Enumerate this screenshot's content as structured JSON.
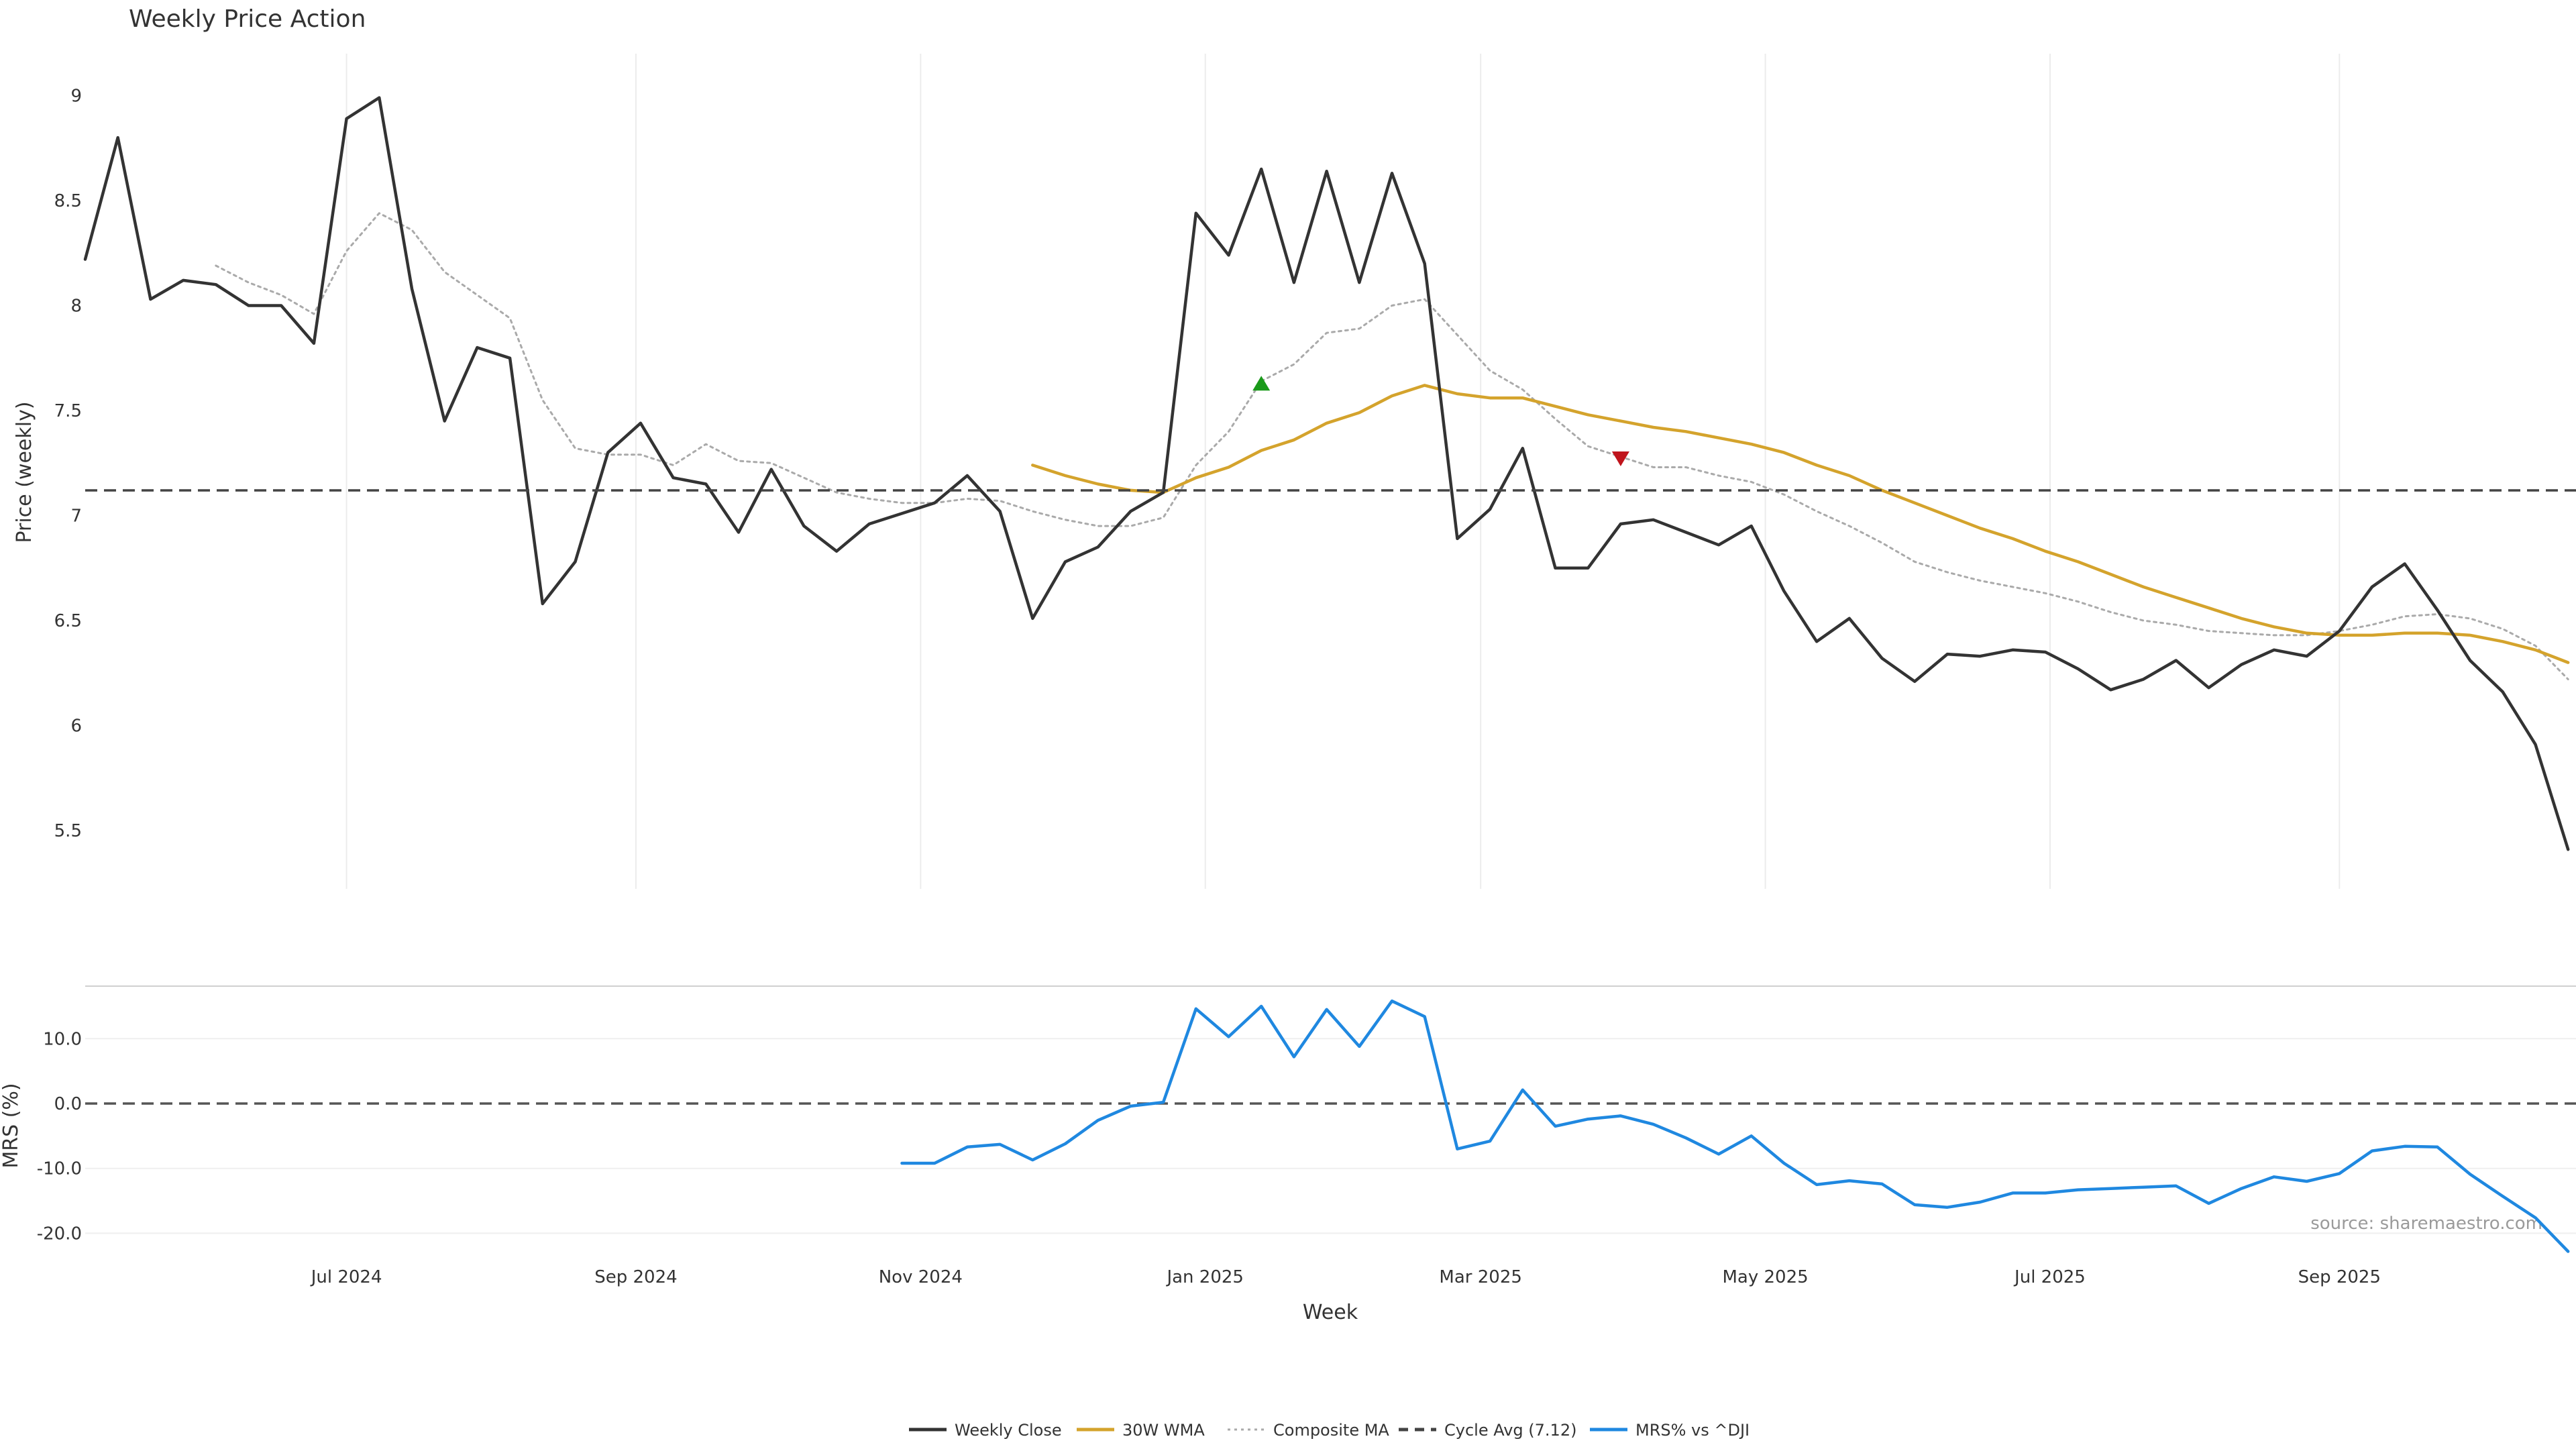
{
  "chart_data": [
    {
      "type": "line",
      "title": "Weekly Price Action",
      "xlabel": "",
      "ylabel": "Price (weekly)",
      "ylim": [
        5.2,
        9.2
      ],
      "yticks": [
        "5.5",
        "6",
        "6.5",
        "7",
        "7.5",
        "8",
        "8.5",
        "9"
      ],
      "grid": true,
      "week_start": "2024-05-06",
      "series": [
        {
          "name": "Weekly Close",
          "color": "#333333",
          "style": "solid",
          "values": [
            8.22,
            8.8,
            8.03,
            8.12,
            8.1,
            8.0,
            8.0,
            7.82,
            8.89,
            8.99,
            8.08,
            7.45,
            7.8,
            7.75,
            6.58,
            6.78,
            7.3,
            7.44,
            7.18,
            7.15,
            6.92,
            7.22,
            6.95,
            6.83,
            6.96,
            7.01,
            7.06,
            7.19,
            7.02,
            6.51,
            6.78,
            6.85,
            7.02,
            7.11,
            8.44,
            8.24,
            8.65,
            8.11,
            8.64,
            8.11,
            8.63,
            8.2,
            6.89,
            7.03,
            7.32,
            6.75,
            6.75,
            6.96,
            6.98,
            6.92,
            6.86,
            6.95,
            6.64,
            6.4,
            6.51,
            6.32,
            6.21,
            6.34,
            6.33,
            6.36,
            6.35,
            6.27,
            6.17,
            6.22,
            6.31,
            6.18,
            6.29,
            6.36,
            6.33,
            6.45,
            6.66,
            6.77,
            6.55,
            6.31,
            6.16,
            5.91,
            5.41
          ]
        },
        {
          "name": "30W WMA",
          "color": "#d4a32c",
          "style": "solid",
          "start_index": 29,
          "values": [
            7.24,
            7.19,
            7.15,
            7.12,
            7.11,
            7.18,
            7.23,
            7.31,
            7.36,
            7.44,
            7.49,
            7.57,
            7.62,
            7.58,
            7.56,
            7.56,
            7.52,
            7.48,
            7.45,
            7.42,
            7.4,
            7.37,
            7.34,
            7.3,
            7.24,
            7.19,
            7.12,
            7.06,
            7.0,
            6.94,
            6.89,
            6.83,
            6.78,
            6.72,
            6.66,
            6.61,
            6.56,
            6.51,
            6.47,
            6.44,
            6.43,
            6.43,
            6.44,
            6.44,
            6.43,
            6.4,
            6.36,
            6.3
          ]
        },
        {
          "name": "Composite MA",
          "color": "#aaaaaa",
          "style": "dotted",
          "start_index": 4,
          "values": [
            8.19,
            8.11,
            8.05,
            7.96,
            8.26,
            8.44,
            8.36,
            8.16,
            8.05,
            7.94,
            7.55,
            7.32,
            7.29,
            7.29,
            7.24,
            7.34,
            7.26,
            7.25,
            7.18,
            7.11,
            7.08,
            7.06,
            7.06,
            7.08,
            7.07,
            7.02,
            6.98,
            6.95,
            6.95,
            6.99,
            7.24,
            7.4,
            7.64,
            7.72,
            7.87,
            7.89,
            8.0,
            8.03,
            7.86,
            7.69,
            7.6,
            7.46,
            7.33,
            7.28,
            7.23,
            7.23,
            7.19,
            7.16,
            7.1,
            7.02,
            6.95,
            6.87,
            6.78,
            6.73,
            6.69,
            6.66,
            6.63,
            6.59,
            6.54,
            6.5,
            6.48,
            6.45,
            6.44,
            6.43,
            6.43,
            6.45,
            6.48,
            6.52,
            6.53,
            6.51,
            6.46,
            6.38,
            6.22
          ]
        },
        {
          "name": "Cycle Avg (7.12)",
          "color": "#444444",
          "style": "dashed",
          "constant": 7.12
        }
      ],
      "markers": [
        {
          "type": "buy",
          "shape": "triangle-up",
          "color": "#1a9a1a",
          "index": 36,
          "value": 7.63
        },
        {
          "type": "sell",
          "shape": "triangle-down",
          "color": "#c0141c",
          "index": 47,
          "value": 7.27
        }
      ]
    },
    {
      "type": "line",
      "title": "",
      "xlabel": "Week",
      "ylabel": "MRS (%)",
      "ylim": [
        -22,
        18
      ],
      "yticks": [
        "10.0",
        "0.0",
        "-10.0",
        "-20.0"
      ],
      "xticks": [
        "Jul 2024",
        "Sep 2024",
        "Nov 2024",
        "Jan 2025",
        "Mar 2025",
        "May 2025",
        "Jul 2025",
        "Sep 2025"
      ],
      "grid": true,
      "annotation": "source: sharemaestro.com",
      "series": [
        {
          "name": "MRS% vs ^DJI",
          "color": "#1f88e0",
          "style": "solid",
          "start_index": 25,
          "values": [
            -9.2,
            -9.2,
            -6.7,
            -6.3,
            -8.7,
            -6.2,
            -2.6,
            -0.4,
            0.2,
            14.6,
            10.3,
            15.0,
            7.2,
            14.5,
            8.8,
            15.8,
            13.4,
            -7.0,
            -5.8,
            2.1,
            -3.5,
            -2.4,
            -1.9,
            -3.2,
            -5.3,
            -7.8,
            -5.0,
            -9.2,
            -12.5,
            -11.9,
            -12.4,
            -15.6,
            -16.0,
            -15.2,
            -13.8,
            -13.8,
            -13.3,
            -13.1,
            -12.9,
            -12.7,
            -15.4,
            -13.1,
            -11.3,
            -12.0,
            -10.8,
            -7.3,
            -6.6,
            -6.7,
            -10.9,
            -14.3,
            -17.6,
            -22.8
          ]
        },
        {
          "name": "",
          "color": "#555555",
          "style": "dashed",
          "constant": 0
        }
      ]
    }
  ],
  "legend": {
    "position": "bottom-center",
    "items": [
      {
        "label": "Weekly Close",
        "color": "#333333",
        "style": "solid"
      },
      {
        "label": "30W WMA",
        "color": "#d4a32c",
        "style": "solid"
      },
      {
        "label": "Composite MA",
        "color": "#aaaaaa",
        "style": "dotted"
      },
      {
        "label": "Cycle Avg (7.12)",
        "color": "#444444",
        "style": "dashed"
      },
      {
        "label": "MRS% vs ^DJI",
        "color": "#1f88e0",
        "style": "solid"
      }
    ]
  }
}
